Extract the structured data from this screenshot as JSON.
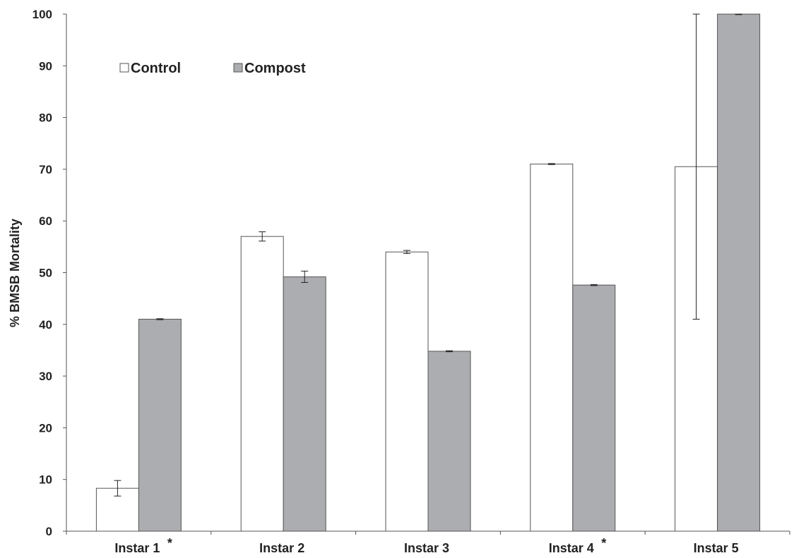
{
  "chart_data": {
    "type": "bar",
    "title": "",
    "xlabel": "",
    "ylabel": "% BMSB Mortality",
    "ylim": [
      0,
      100
    ],
    "yticks": [
      0,
      10,
      20,
      30,
      40,
      50,
      60,
      70,
      80,
      90,
      100
    ],
    "categories": [
      "Instar 1",
      "Instar 2",
      "Instar 3",
      "Instar 4",
      "Instar 5"
    ],
    "category_markers": [
      "*",
      "",
      "",
      "*",
      ""
    ],
    "series": [
      {
        "name": "Control",
        "color": "#ffffff",
        "values": [
          8.3,
          57.0,
          54.0,
          71.0,
          70.5
        ],
        "error": [
          1.5,
          0.9,
          0.3,
          0.1,
          29.5
        ]
      },
      {
        "name": "Compost",
        "color": "#acadb0",
        "values": [
          41.0,
          49.2,
          34.8,
          47.6,
          100.0
        ],
        "error": [
          0.1,
          1.1,
          0.1,
          0.1,
          0.1
        ]
      }
    ],
    "legend_position": "top-left",
    "grid": false
  }
}
